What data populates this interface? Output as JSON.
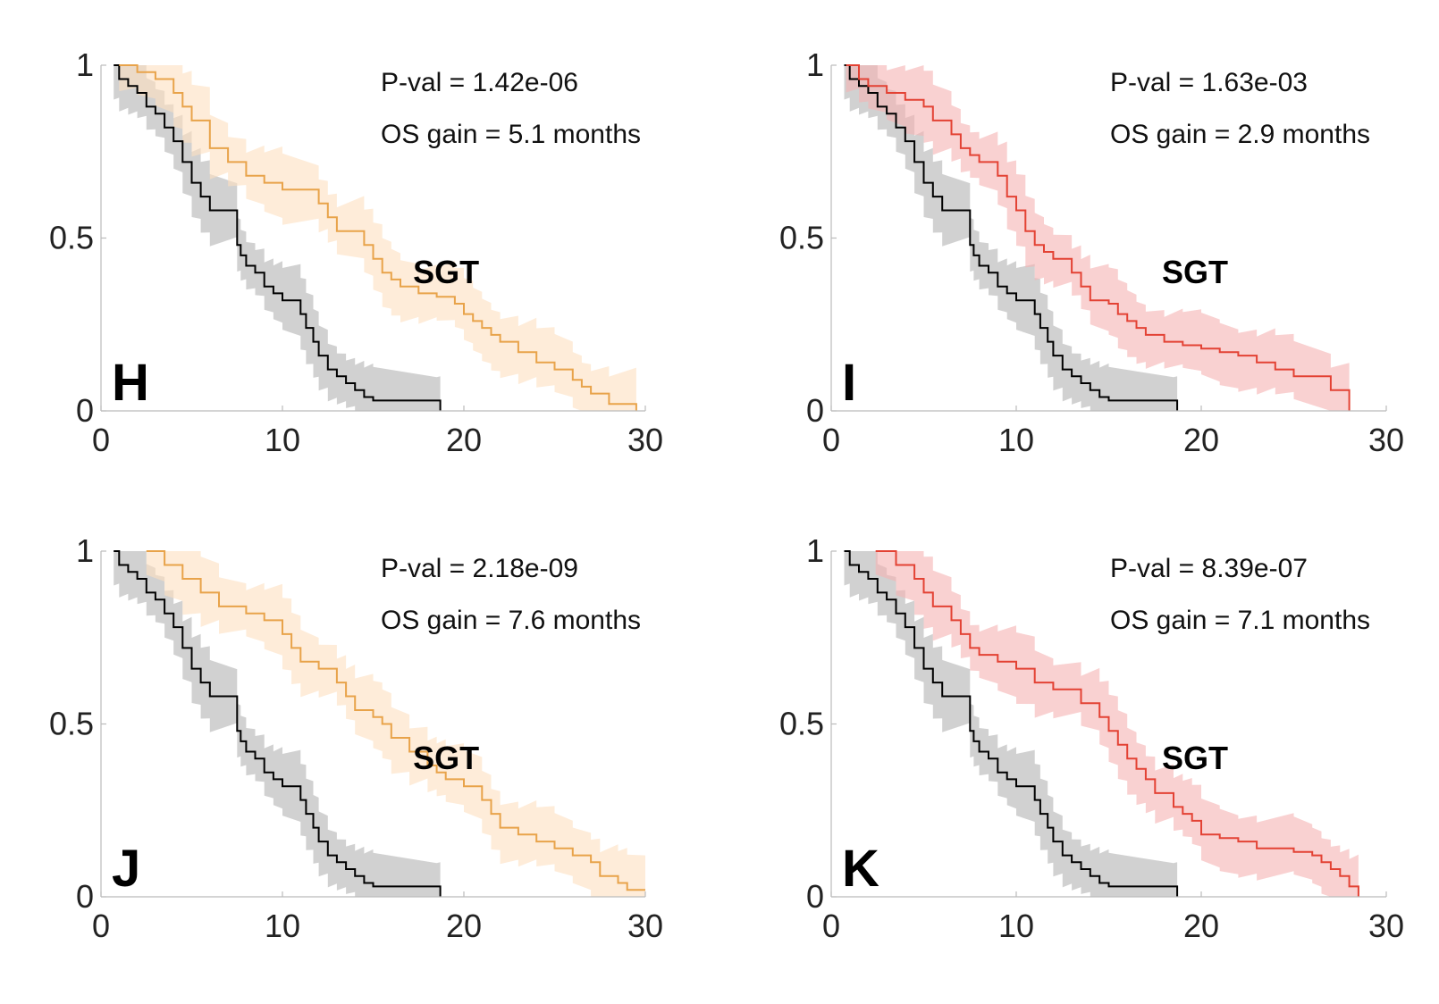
{
  "colors": {
    "control_line": "#000000",
    "control_band": "#bdbdbd",
    "orange_line": "#e8a34a",
    "orange_band": "#fde0c0",
    "red_line": "#e34234",
    "red_band": "#f5b3b3",
    "axis": "#bbbbbb"
  },
  "chart_data": [
    {
      "type": "line",
      "panel_letter": "H",
      "stats": {
        "pval": "P-val = 1.42e-06",
        "gain": "OS gain = 5.1 months"
      },
      "cohort_label": "SGT",
      "xlim": [
        0,
        30
      ],
      "ylim": [
        0,
        1
      ],
      "x_ticks": [
        "0",
        "10",
        "20",
        "30"
      ],
      "y_ticks": [
        "0",
        "0.5",
        "1"
      ],
      "grid": false,
      "series": [
        {
          "color_key": "control",
          "x": [
            0.7,
            1.0,
            1.5,
            2.0,
            2.5,
            3.0,
            3.5,
            4.0,
            4.5,
            5.0,
            5.5,
            6.0,
            7.5,
            7.7,
            8.0,
            8.5,
            9.0,
            9.5,
            10.0,
            11.0,
            11.3,
            11.7,
            12.0,
            12.5,
            13.0,
            13.5,
            14.0,
            14.5,
            15.0,
            18.5,
            18.7
          ],
          "y": [
            1.0,
            0.96,
            0.94,
            0.92,
            0.88,
            0.86,
            0.82,
            0.78,
            0.72,
            0.66,
            0.62,
            0.58,
            0.48,
            0.45,
            0.42,
            0.4,
            0.36,
            0.34,
            0.32,
            0.28,
            0.24,
            0.2,
            0.16,
            0.12,
            0.1,
            0.08,
            0.06,
            0.04,
            0.03,
            0.03,
            0.0
          ]
        },
        {
          "color_key": "orange",
          "x": [
            1.0,
            2.0,
            3.0,
            4.0,
            4.5,
            5.0,
            6.0,
            7.0,
            8.0,
            9.0,
            10.0,
            12.0,
            12.5,
            13.0,
            14.5,
            15.0,
            15.5,
            16.0,
            16.5,
            17.5,
            18.5,
            19.5,
            20.0,
            20.5,
            21.0,
            21.5,
            22.0,
            23.0,
            24.0,
            25.0,
            26.0,
            26.5,
            27.0,
            28.0,
            29.5
          ],
          "y": [
            1.0,
            0.98,
            0.96,
            0.92,
            0.88,
            0.84,
            0.76,
            0.72,
            0.68,
            0.66,
            0.64,
            0.6,
            0.56,
            0.52,
            0.48,
            0.44,
            0.4,
            0.38,
            0.36,
            0.34,
            0.33,
            0.31,
            0.28,
            0.26,
            0.24,
            0.22,
            0.2,
            0.17,
            0.14,
            0.12,
            0.09,
            0.07,
            0.05,
            0.02,
            0.0
          ]
        }
      ]
    },
    {
      "type": "line",
      "panel_letter": "I",
      "stats": {
        "pval": "P-val = 1.63e-03",
        "gain": "OS gain = 2.9 months"
      },
      "cohort_label": "SGT",
      "xlim": [
        0,
        30
      ],
      "ylim": [
        0,
        1
      ],
      "x_ticks": [
        "0",
        "10",
        "20",
        "30"
      ],
      "y_ticks": [
        "0",
        "0.5",
        "1"
      ],
      "grid": false,
      "series": [
        {
          "color_key": "control",
          "x": [
            0.7,
            1.0,
            1.5,
            2.0,
            2.5,
            3.0,
            3.5,
            4.0,
            4.5,
            5.0,
            5.5,
            6.0,
            7.5,
            7.7,
            8.0,
            8.5,
            9.0,
            9.5,
            10.0,
            11.0,
            11.3,
            11.7,
            12.0,
            12.5,
            13.0,
            13.5,
            14.0,
            14.5,
            15.0,
            18.5,
            18.7
          ],
          "y": [
            1.0,
            0.96,
            0.94,
            0.92,
            0.88,
            0.86,
            0.82,
            0.78,
            0.72,
            0.66,
            0.62,
            0.58,
            0.48,
            0.45,
            0.42,
            0.4,
            0.36,
            0.34,
            0.32,
            0.28,
            0.24,
            0.2,
            0.16,
            0.12,
            0.1,
            0.08,
            0.06,
            0.04,
            0.03,
            0.03,
            0.0
          ]
        },
        {
          "color_key": "red",
          "x": [
            0.8,
            1.5,
            2.0,
            3.0,
            4.0,
            5.0,
            5.5,
            6.5,
            7.0,
            7.5,
            8.0,
            9.0,
            9.5,
            10.0,
            10.5,
            11.0,
            11.5,
            12.0,
            13.0,
            13.5,
            14.0,
            15.0,
            15.5,
            16.0,
            16.5,
            17.0,
            18.0,
            19.0,
            20.0,
            21.0,
            22.0,
            23.0,
            24.0,
            25.0,
            27.0,
            28.0
          ],
          "y": [
            1.0,
            0.96,
            0.94,
            0.92,
            0.9,
            0.88,
            0.84,
            0.8,
            0.76,
            0.74,
            0.72,
            0.68,
            0.62,
            0.58,
            0.52,
            0.48,
            0.46,
            0.44,
            0.4,
            0.36,
            0.32,
            0.31,
            0.28,
            0.26,
            0.24,
            0.22,
            0.2,
            0.19,
            0.18,
            0.17,
            0.16,
            0.14,
            0.12,
            0.1,
            0.06,
            0.0
          ]
        }
      ]
    },
    {
      "type": "line",
      "panel_letter": "J",
      "stats": {
        "pval": "P-val = 2.18e-09",
        "gain": "OS gain = 7.6 months"
      },
      "cohort_label": "SGT",
      "xlim": [
        0,
        30
      ],
      "ylim": [
        0,
        1
      ],
      "x_ticks": [
        "0",
        "10",
        "20",
        "30"
      ],
      "y_ticks": [
        "0",
        "0.5",
        "1"
      ],
      "grid": false,
      "series": [
        {
          "color_key": "control",
          "x": [
            0.7,
            1.0,
            1.5,
            2.0,
            2.5,
            3.0,
            3.5,
            4.0,
            4.5,
            5.0,
            5.5,
            6.0,
            7.5,
            7.7,
            8.0,
            8.5,
            9.0,
            9.5,
            10.0,
            11.0,
            11.3,
            11.7,
            12.0,
            12.5,
            13.0,
            13.5,
            14.0,
            14.5,
            15.0,
            18.5,
            18.7
          ],
          "y": [
            1.0,
            0.96,
            0.94,
            0.92,
            0.88,
            0.86,
            0.82,
            0.78,
            0.72,
            0.66,
            0.62,
            0.58,
            0.48,
            0.45,
            0.42,
            0.4,
            0.36,
            0.34,
            0.32,
            0.28,
            0.24,
            0.2,
            0.16,
            0.12,
            0.1,
            0.08,
            0.06,
            0.04,
            0.03,
            0.03,
            0.0
          ]
        },
        {
          "color_key": "orange",
          "x": [
            2.5,
            3.5,
            4.5,
            5.5,
            6.5,
            8.0,
            9.0,
            10.0,
            10.5,
            11.0,
            12.0,
            13.0,
            13.5,
            14.0,
            15.0,
            15.5,
            16.0,
            17.0,
            18.0,
            18.5,
            19.0,
            20.0,
            21.0,
            21.5,
            22.0,
            23.0,
            24.0,
            25.0,
            26.0,
            27.0,
            27.5,
            28.5,
            29.0,
            30.0
          ],
          "y": [
            1.0,
            0.96,
            0.92,
            0.88,
            0.84,
            0.82,
            0.8,
            0.76,
            0.72,
            0.68,
            0.66,
            0.62,
            0.58,
            0.54,
            0.52,
            0.5,
            0.46,
            0.42,
            0.38,
            0.36,
            0.34,
            0.32,
            0.28,
            0.24,
            0.2,
            0.18,
            0.16,
            0.14,
            0.12,
            0.1,
            0.06,
            0.04,
            0.02,
            0.02
          ]
        }
      ]
    },
    {
      "type": "line",
      "panel_letter": "K",
      "stats": {
        "pval": "P-val = 8.39e-07",
        "gain": "OS gain = 7.1 months"
      },
      "cohort_label": "SGT",
      "xlim": [
        0,
        30
      ],
      "ylim": [
        0,
        1
      ],
      "x_ticks": [
        "0",
        "10",
        "20",
        "30"
      ],
      "y_ticks": [
        "0",
        "0.5",
        "1"
      ],
      "grid": false,
      "series": [
        {
          "color_key": "control",
          "x": [
            0.7,
            1.0,
            1.5,
            2.0,
            2.5,
            3.0,
            3.5,
            4.0,
            4.5,
            5.0,
            5.5,
            6.0,
            7.5,
            7.7,
            8.0,
            8.5,
            9.0,
            9.5,
            10.0,
            11.0,
            11.3,
            11.7,
            12.0,
            12.5,
            13.0,
            13.5,
            14.0,
            14.5,
            15.0,
            18.5,
            18.7
          ],
          "y": [
            1.0,
            0.96,
            0.94,
            0.92,
            0.88,
            0.86,
            0.82,
            0.78,
            0.72,
            0.66,
            0.62,
            0.58,
            0.48,
            0.45,
            0.42,
            0.4,
            0.36,
            0.34,
            0.32,
            0.28,
            0.24,
            0.2,
            0.16,
            0.12,
            0.1,
            0.08,
            0.06,
            0.04,
            0.03,
            0.03,
            0.0
          ]
        },
        {
          "color_key": "red",
          "x": [
            2.4,
            3.5,
            4.5,
            5.0,
            5.5,
            6.5,
            7.0,
            7.5,
            8.0,
            9.0,
            10.0,
            11.0,
            12.0,
            13.5,
            14.5,
            15.0,
            15.5,
            16.0,
            16.5,
            17.0,
            17.5,
            18.5,
            19.0,
            19.5,
            20.0,
            21.0,
            22.0,
            23.0,
            25.0,
            26.0,
            26.5,
            27.0,
            27.5,
            28.0,
            28.5
          ],
          "y": [
            1.0,
            0.96,
            0.92,
            0.88,
            0.84,
            0.8,
            0.76,
            0.72,
            0.7,
            0.68,
            0.66,
            0.62,
            0.6,
            0.56,
            0.52,
            0.48,
            0.44,
            0.4,
            0.37,
            0.34,
            0.3,
            0.26,
            0.24,
            0.22,
            0.18,
            0.17,
            0.16,
            0.14,
            0.13,
            0.12,
            0.1,
            0.08,
            0.06,
            0.03,
            0.0
          ]
        }
      ]
    }
  ]
}
